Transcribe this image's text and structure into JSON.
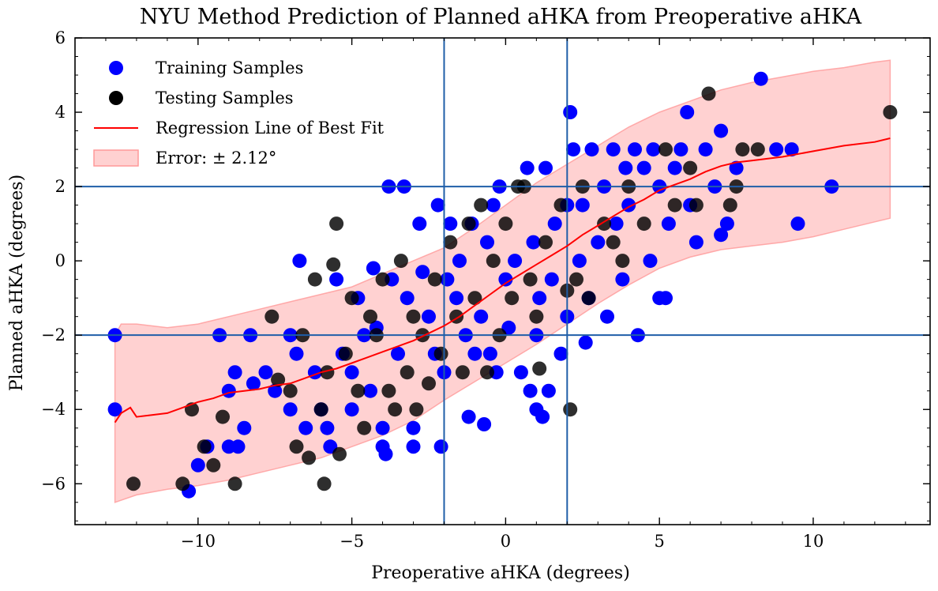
{
  "chart_data": {
    "type": "scatter",
    "title": "NYU Method Prediction of Planned aHKA from Preoperative aHKA",
    "xlabel": "Preoperative aHKA (degrees)",
    "ylabel": "Planned aHKA (degrees)",
    "xlim": [
      -14,
      13.8
    ],
    "ylim": [
      -7.1,
      6
    ],
    "xticks": [
      -10,
      -5,
      0,
      5,
      10
    ],
    "xtick_labels": [
      "−10",
      "−5",
      "0",
      "5",
      "10"
    ],
    "yticks": [
      -6,
      -4,
      -2,
      0,
      2,
      4,
      6
    ],
    "ytick_labels": [
      "−6",
      "−4",
      "−2",
      "0",
      "2",
      "4",
      "6"
    ],
    "grid": false,
    "legend_position": "top-left",
    "reference_lines": {
      "vertical_x": [
        -2,
        2
      ],
      "horizontal_y": [
        -2,
        2
      ],
      "color": "#1f5ea8"
    },
    "legend": [
      {
        "label": "Training Samples",
        "kind": "marker",
        "color": "#0000ff"
      },
      {
        "label": "Testing Samples",
        "kind": "marker",
        "color": "#000000"
      },
      {
        "label": "Regression Line of Best Fit",
        "kind": "line",
        "color": "#ff0000"
      },
      {
        "label": "Error: ± 2.12°",
        "kind": "band",
        "color": "#ff9999"
      }
    ],
    "series": [
      {
        "name": "Training Samples",
        "color": "#0000ff",
        "points": [
          [
            -12.7,
            -2
          ],
          [
            -12.7,
            -4
          ],
          [
            -10.3,
            -6.2
          ],
          [
            -10,
            -5.5
          ],
          [
            -9.7,
            -5
          ],
          [
            -9.3,
            -2
          ],
          [
            -9,
            -3.5
          ],
          [
            -9,
            -5
          ],
          [
            -8.8,
            -3
          ],
          [
            -8.7,
            -5
          ],
          [
            -8.5,
            -4.5
          ],
          [
            -8.3,
            -2
          ],
          [
            -8.2,
            -3.3
          ],
          [
            -7.8,
            -3
          ],
          [
            -7.5,
            -3.5
          ],
          [
            -7,
            -2
          ],
          [
            -7,
            -4
          ],
          [
            -6.8,
            -2.5
          ],
          [
            -6.7,
            0
          ],
          [
            -6.5,
            -4.5
          ],
          [
            -6.2,
            -3
          ],
          [
            -6,
            -4
          ],
          [
            -5.8,
            -4.5
          ],
          [
            -5.7,
            -5
          ],
          [
            -5.5,
            -0.5
          ],
          [
            -5.3,
            -2.5
          ],
          [
            -5,
            -3
          ],
          [
            -5,
            -4
          ],
          [
            -4.8,
            -1
          ],
          [
            -4.6,
            -2
          ],
          [
            -4.4,
            -3.5
          ],
          [
            -4.3,
            -0.2
          ],
          [
            -4.2,
            -1.8
          ],
          [
            -4,
            -4.5
          ],
          [
            -4,
            -5
          ],
          [
            -3.9,
            -5.2
          ],
          [
            -3.8,
            2
          ],
          [
            -3.7,
            -0.5
          ],
          [
            -3.5,
            -2.5
          ],
          [
            -3.3,
            2
          ],
          [
            -3.2,
            -1
          ],
          [
            -3,
            -4.5
          ],
          [
            -3,
            -5
          ],
          [
            -2.8,
            1
          ],
          [
            -2.7,
            -0.3
          ],
          [
            -2.5,
            -1.5
          ],
          [
            -2.3,
            -2.5
          ],
          [
            -2.2,
            1.5
          ],
          [
            -2.1,
            -5
          ],
          [
            -2,
            -3
          ],
          [
            -1.9,
            -0.5
          ],
          [
            -1.8,
            1
          ],
          [
            -1.6,
            -1
          ],
          [
            -1.5,
            0
          ],
          [
            -1.3,
            -2
          ],
          [
            -1.2,
            -4.2
          ],
          [
            -1.1,
            1
          ],
          [
            -1,
            -2.5
          ],
          [
            -0.8,
            -1.5
          ],
          [
            -0.7,
            -4.4
          ],
          [
            -0.6,
            0.5
          ],
          [
            -0.5,
            -2.5
          ],
          [
            -0.4,
            1.5
          ],
          [
            -0.3,
            -3
          ],
          [
            -0.2,
            2
          ],
          [
            0,
            -0.5
          ],
          [
            0.1,
            -1.8
          ],
          [
            0.3,
            0
          ],
          [
            0.5,
            -3
          ],
          [
            0.7,
            2.5
          ],
          [
            0.8,
            -3.5
          ],
          [
            0.9,
            0.5
          ],
          [
            1,
            -2
          ],
          [
            1,
            -4
          ],
          [
            1.1,
            -1
          ],
          [
            1.2,
            -4.2
          ],
          [
            1.3,
            2.5
          ],
          [
            1.4,
            -3.5
          ],
          [
            1.5,
            -0.5
          ],
          [
            1.6,
            1
          ],
          [
            1.8,
            -2.5
          ],
          [
            2,
            -1.5
          ],
          [
            2,
            1.5
          ],
          [
            2.1,
            4
          ],
          [
            2.2,
            3
          ],
          [
            2.4,
            0
          ],
          [
            2.5,
            1.5
          ],
          [
            2.6,
            -2.2
          ],
          [
            2.7,
            -1
          ],
          [
            2.8,
            3
          ],
          [
            3,
            0.5
          ],
          [
            3.2,
            2
          ],
          [
            3.3,
            -1.5
          ],
          [
            3.5,
            3
          ],
          [
            3.6,
            1
          ],
          [
            3.8,
            -0.5
          ],
          [
            3.9,
            2.5
          ],
          [
            4,
            1.5
          ],
          [
            4.2,
            3
          ],
          [
            4.3,
            -2
          ],
          [
            4.5,
            2.5
          ],
          [
            4.7,
            0
          ],
          [
            4.8,
            3
          ],
          [
            5,
            2
          ],
          [
            5,
            -1
          ],
          [
            5.2,
            -1
          ],
          [
            5.3,
            1
          ],
          [
            5.5,
            2.5
          ],
          [
            5.7,
            3
          ],
          [
            5.9,
            4
          ],
          [
            6,
            1.5
          ],
          [
            6.2,
            0.5
          ],
          [
            6.5,
            3
          ],
          [
            6.8,
            2
          ],
          [
            7,
            0.7
          ],
          [
            7,
            3.5
          ],
          [
            7.2,
            1
          ],
          [
            7.5,
            2.5
          ],
          [
            8.3,
            4.9
          ],
          [
            8.8,
            3
          ],
          [
            9.3,
            3
          ],
          [
            9.5,
            1
          ],
          [
            10.6,
            2
          ]
        ]
      },
      {
        "name": "Testing Samples",
        "color": "#000000",
        "points": [
          [
            -12.1,
            -6
          ],
          [
            -10.5,
            -6
          ],
          [
            -10.2,
            -4
          ],
          [
            -9.8,
            -5
          ],
          [
            -9.5,
            -5.5
          ],
          [
            -9.2,
            -4.2
          ],
          [
            -8.8,
            -6
          ],
          [
            -7.6,
            -1.5
          ],
          [
            -7.4,
            -3.2
          ],
          [
            -7,
            -3.5
          ],
          [
            -6.8,
            -5
          ],
          [
            -6.6,
            -2
          ],
          [
            -6.4,
            -5.3
          ],
          [
            -6.2,
            -0.5
          ],
          [
            -6,
            -4
          ],
          [
            -5.9,
            -6
          ],
          [
            -5.8,
            -3
          ],
          [
            -5.6,
            -0.1
          ],
          [
            -5.5,
            1
          ],
          [
            -5.4,
            -5.2
          ],
          [
            -5.2,
            -2.5
          ],
          [
            -5,
            -1
          ],
          [
            -4.8,
            -3.5
          ],
          [
            -4.6,
            -4.5
          ],
          [
            -4.4,
            -1.5
          ],
          [
            -4.2,
            -2
          ],
          [
            -4,
            -0.5
          ],
          [
            -3.8,
            -3.5
          ],
          [
            -3.6,
            -4
          ],
          [
            -3.4,
            0
          ],
          [
            -3.2,
            -3
          ],
          [
            -3,
            -1.5
          ],
          [
            -2.9,
            -4
          ],
          [
            -2.7,
            -2
          ],
          [
            -2.5,
            -3.3
          ],
          [
            -2.3,
            -0.5
          ],
          [
            -2.1,
            -2.5
          ],
          [
            -1.8,
            0.5
          ],
          [
            -1.6,
            -1.5
          ],
          [
            -1.4,
            -3
          ],
          [
            -1.2,
            1
          ],
          [
            -1,
            -1
          ],
          [
            -0.8,
            1.5
          ],
          [
            -0.6,
            -3
          ],
          [
            -0.4,
            0
          ],
          [
            -0.2,
            -2
          ],
          [
            0,
            1
          ],
          [
            0.2,
            -1
          ],
          [
            0.4,
            2
          ],
          [
            0.6,
            2
          ],
          [
            0.8,
            -0.5
          ],
          [
            1,
            -1.5
          ],
          [
            1.1,
            -2.9
          ],
          [
            1.3,
            0.5
          ],
          [
            1.8,
            1.5
          ],
          [
            2,
            -0.8
          ],
          [
            2.1,
            -4
          ],
          [
            2.3,
            -0.5
          ],
          [
            2.5,
            2
          ],
          [
            2.7,
            -1
          ],
          [
            3.2,
            1
          ],
          [
            3.5,
            0.5
          ],
          [
            3.8,
            0
          ],
          [
            4,
            2
          ],
          [
            4.5,
            1
          ],
          [
            5.2,
            3
          ],
          [
            5.5,
            1.5
          ],
          [
            6,
            2.5
          ],
          [
            6.2,
            1.5
          ],
          [
            6.6,
            4.5
          ],
          [
            7.3,
            1.5
          ],
          [
            7.5,
            2
          ],
          [
            7.7,
            3
          ],
          [
            8.2,
            3
          ],
          [
            12.5,
            4
          ]
        ]
      },
      {
        "name": "Regression Line of Best Fit",
        "color": "#ff0000",
        "points": [
          [
            -12.7,
            -4.35
          ],
          [
            -12.5,
            -4.1
          ],
          [
            -12.2,
            -3.95
          ],
          [
            -12,
            -4.2
          ],
          [
            -11.5,
            -4.15
          ],
          [
            -11,
            -4.1
          ],
          [
            -10.5,
            -3.95
          ],
          [
            -10,
            -3.8
          ],
          [
            -9.5,
            -3.7
          ],
          [
            -9,
            -3.55
          ],
          [
            -8.5,
            -3.5
          ],
          [
            -8,
            -3.45
          ],
          [
            -7.5,
            -3.35
          ],
          [
            -7,
            -3.3
          ],
          [
            -6.5,
            -3.15
          ],
          [
            -6,
            -3
          ],
          [
            -5.5,
            -2.9
          ],
          [
            -5,
            -2.75
          ],
          [
            -4.5,
            -2.6
          ],
          [
            -4,
            -2.45
          ],
          [
            -3.5,
            -2.3
          ],
          [
            -3,
            -2.15
          ],
          [
            -2.5,
            -1.95
          ],
          [
            -2,
            -1.75
          ],
          [
            -1.5,
            -1.5
          ],
          [
            -1,
            -1.2
          ],
          [
            -0.5,
            -0.9
          ],
          [
            0,
            -0.6
          ],
          [
            0.5,
            -0.35
          ],
          [
            1,
            -0.1
          ],
          [
            1.5,
            0.15
          ],
          [
            2,
            0.4
          ],
          [
            2.5,
            0.7
          ],
          [
            3,
            0.95
          ],
          [
            3.5,
            1.2
          ],
          [
            4,
            1.45
          ],
          [
            4.5,
            1.65
          ],
          [
            5,
            1.9
          ],
          [
            5.5,
            2.05
          ],
          [
            6,
            2.2
          ],
          [
            6.5,
            2.4
          ],
          [
            7,
            2.55
          ],
          [
            7.5,
            2.65
          ],
          [
            8,
            2.7
          ],
          [
            9,
            2.8
          ],
          [
            10,
            2.95
          ],
          [
            11,
            3.1
          ],
          [
            12,
            3.2
          ],
          [
            12.5,
            3.3
          ]
        ]
      }
    ],
    "error_band": {
      "label": "Error: ± 2.12°",
      "color": "#ff9999",
      "upper": [
        [
          -12.7,
          -2
        ],
        [
          -12.5,
          -1.7
        ],
        [
          -12,
          -1.7
        ],
        [
          -11,
          -1.8
        ],
        [
          -10,
          -1.7
        ],
        [
          -9,
          -1.5
        ],
        [
          -8,
          -1.3
        ],
        [
          -7,
          -1.1
        ],
        [
          -6,
          -0.9
        ],
        [
          -5,
          -0.7
        ],
        [
          -4,
          -0.35
        ],
        [
          -3,
          0
        ],
        [
          -2,
          0.35
        ],
        [
          -1,
          0.9
        ],
        [
          0,
          1.5
        ],
        [
          1,
          2.1
        ],
        [
          2,
          2.6
        ],
        [
          3,
          3.1
        ],
        [
          4,
          3.6
        ],
        [
          5,
          4
        ],
        [
          6,
          4.3
        ],
        [
          7,
          4.6
        ],
        [
          8,
          4.8
        ],
        [
          9,
          4.95
        ],
        [
          10,
          5.1
        ],
        [
          11,
          5.2
        ],
        [
          12,
          5.35
        ],
        [
          12.5,
          5.4
        ]
      ],
      "lower": [
        [
          12.5,
          1.15
        ],
        [
          12,
          1.05
        ],
        [
          11,
          0.85
        ],
        [
          10,
          0.65
        ],
        [
          9,
          0.5
        ],
        [
          8,
          0.4
        ],
        [
          7,
          0.3
        ],
        [
          6,
          0.1
        ],
        [
          5,
          -0.2
        ],
        [
          4,
          -0.65
        ],
        [
          3,
          -1.15
        ],
        [
          2,
          -1.7
        ],
        [
          1,
          -2.25
        ],
        [
          0,
          -2.75
        ],
        [
          -1,
          -3.25
        ],
        [
          -2,
          -3.75
        ],
        [
          -3,
          -4.3
        ],
        [
          -4,
          -4.7
        ],
        [
          -5,
          -5
        ],
        [
          -6,
          -5.3
        ],
        [
          -7,
          -5.5
        ],
        [
          -8,
          -5.7
        ],
        [
          -9,
          -5.9
        ],
        [
          -10,
          -6.05
        ],
        [
          -11,
          -6.15
        ],
        [
          -12,
          -6.3
        ],
        [
          -12.7,
          -6.5
        ]
      ]
    }
  }
}
